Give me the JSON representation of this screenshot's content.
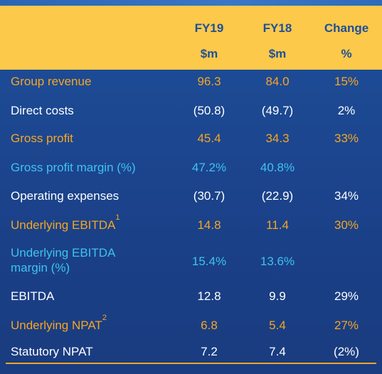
{
  "header": {
    "col1_title": "FY19",
    "col1_unit": "$m",
    "col2_title": "FY18",
    "col2_unit": "$m",
    "col3_title": "Change",
    "col3_unit": "%"
  },
  "rows": [
    {
      "label": "Group revenue",
      "fy19": "96.3",
      "fy18": "84.0",
      "change": "15%",
      "color": "#f6a623"
    },
    {
      "label": "Direct costs",
      "fy19": "(50.8)",
      "fy18": "(49.7)",
      "change": "2%",
      "color": "#ffffff"
    },
    {
      "label": "Gross profit",
      "fy19": "45.4",
      "fy18": "34.3",
      "change": "33%",
      "color": "#f6a623"
    },
    {
      "label": "Gross profit margin (%)",
      "fy19": "47.2%",
      "fy18": "40.8%",
      "change": "",
      "color": "#3fc2ef"
    },
    {
      "label": "Operating expenses",
      "fy19": "(30.7)",
      "fy18": "(22.9)",
      "change": "34%",
      "color": "#ffffff"
    },
    {
      "label": "Underlying EBITDA",
      "label_sup": "1",
      "fy19": "14.8",
      "fy18": "11.4",
      "change": "30%",
      "color": "#f6a623"
    },
    {
      "label_line1": "Underlying EBITDA",
      "label_line2": "margin (%)",
      "fy19": "15.4%",
      "fy18": "13.6%",
      "change": "",
      "color": "#3fc2ef"
    },
    {
      "label": "EBITDA",
      "fy19": "12.8",
      "fy18": "9.9",
      "change": "29%",
      "color": "#ffffff"
    },
    {
      "label": "Underlying NPAT",
      "label_sup": "2",
      "fy19": "6.8",
      "fy18": "5.4",
      "change": "27%",
      "color": "#f6a623"
    },
    {
      "label": "Statutory NPAT",
      "fy19": "7.2",
      "fy18": "7.4",
      "change": "(2%)",
      "color": "#ffffff"
    }
  ]
}
